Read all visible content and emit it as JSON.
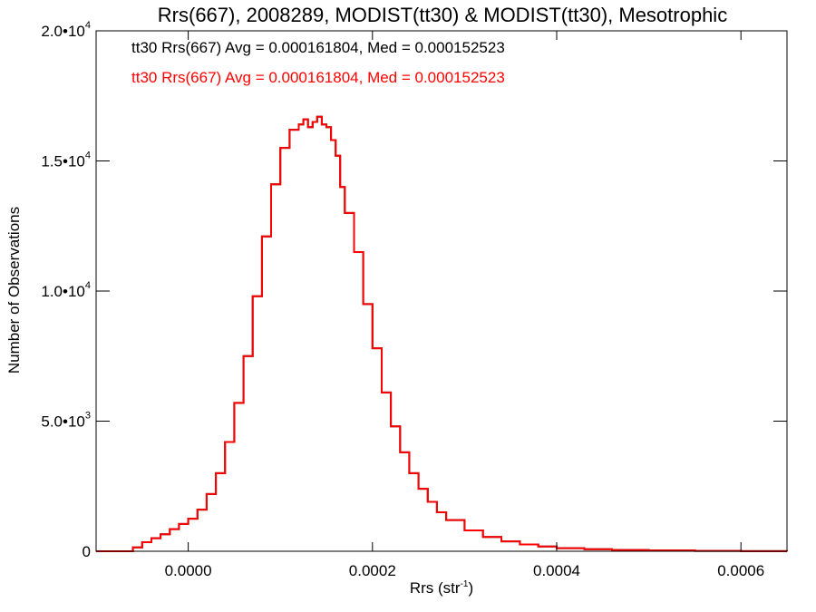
{
  "chart_data": {
    "type": "line",
    "step": true,
    "title": "Rrs(667), 2008289, MODIST(tt30) & MODIST(tt30), Mesotrophic",
    "xlabel": "Rrs (str",
    "xlabel_sup": "-1",
    "xlabel_end": ")",
    "ylabel": "Number of Observations",
    "xlim": [
      -0.0001,
      0.00065
    ],
    "ylim": [
      0,
      20000
    ],
    "x_ticks": [
      {
        "value": 0.0,
        "label": "0.0000"
      },
      {
        "value": 0.0002,
        "label": "0.0002"
      },
      {
        "value": 0.0004,
        "label": "0.0004"
      },
      {
        "value": 0.0006,
        "label": "0.0006"
      }
    ],
    "y_ticks": [
      {
        "value": 0,
        "mant": "0",
        "exp": ""
      },
      {
        "value": 5000,
        "mant": "5.0•10",
        "exp": "3"
      },
      {
        "value": 10000,
        "mant": "1.0•10",
        "exp": "4"
      },
      {
        "value": 15000,
        "mant": "1.5•10",
        "exp": "4"
      },
      {
        "value": 20000,
        "mant": "2.0•10",
        "exp": "4"
      }
    ],
    "annotations": [
      {
        "text": "tt30 Rrs(667) Avg = 0.000161804, Med = 0.000152523",
        "color": "#000000"
      },
      {
        "text": "tt30 Rrs(667) Avg = 0.000161804, Med = 0.000152523",
        "color": "#ff0000"
      }
    ],
    "series": [
      {
        "color": "#000000",
        "x": [
          -0.0001,
          -7e-05,
          -6e-05,
          -5e-05,
          -4e-05,
          -3e-05,
          -2e-05,
          -1e-05,
          0.0,
          1e-05,
          2e-05,
          3e-05,
          4e-05,
          5e-05,
          6e-05,
          7e-05,
          8e-05,
          9e-05,
          0.0001,
          0.00011,
          0.00012,
          0.000125,
          0.00013,
          0.000135,
          0.00014,
          0.000145,
          0.00015,
          0.000155,
          0.00016,
          0.000165,
          0.00017,
          0.00018,
          0.00019,
          0.0002,
          0.00021,
          0.00022,
          0.00023,
          0.00024,
          0.00025,
          0.00026,
          0.00027,
          0.00028,
          0.0003,
          0.00032,
          0.00034,
          0.00036,
          0.00038,
          0.0004,
          0.00043,
          0.00046,
          0.0005,
          0.00055,
          0.0006,
          0.00065
        ],
        "y": [
          0,
          0,
          150,
          350,
          500,
          650,
          850,
          1050,
          1250,
          1600,
          2200,
          3000,
          4200,
          5700,
          7500,
          9800,
          12100,
          14100,
          15500,
          16200,
          16400,
          16600,
          16300,
          16500,
          16700,
          16400,
          16300,
          15800,
          15200,
          14000,
          13000,
          11500,
          9500,
          7800,
          6100,
          4800,
          3800,
          3000,
          2400,
          1900,
          1500,
          1200,
          800,
          550,
          380,
          260,
          180,
          120,
          80,
          50,
          30,
          15,
          5,
          0
        ]
      },
      {
        "color": "#ff0000",
        "x": [
          -0.0001,
          -7e-05,
          -6e-05,
          -5e-05,
          -4e-05,
          -3e-05,
          -2e-05,
          -1e-05,
          0.0,
          1e-05,
          2e-05,
          3e-05,
          4e-05,
          5e-05,
          6e-05,
          7e-05,
          8e-05,
          9e-05,
          0.0001,
          0.00011,
          0.00012,
          0.000125,
          0.00013,
          0.000135,
          0.00014,
          0.000145,
          0.00015,
          0.000155,
          0.00016,
          0.000165,
          0.00017,
          0.00018,
          0.00019,
          0.0002,
          0.00021,
          0.00022,
          0.00023,
          0.00024,
          0.00025,
          0.00026,
          0.00027,
          0.00028,
          0.0003,
          0.00032,
          0.00034,
          0.00036,
          0.00038,
          0.0004,
          0.00043,
          0.00046,
          0.0005,
          0.00055,
          0.0006,
          0.00065
        ],
        "y": [
          0,
          0,
          150,
          350,
          500,
          650,
          850,
          1050,
          1250,
          1600,
          2200,
          3000,
          4200,
          5700,
          7500,
          9800,
          12100,
          14100,
          15500,
          16200,
          16400,
          16600,
          16300,
          16500,
          16700,
          16400,
          16300,
          15800,
          15200,
          14000,
          13000,
          11500,
          9500,
          7800,
          6100,
          4800,
          3800,
          3000,
          2400,
          1900,
          1500,
          1200,
          800,
          550,
          380,
          260,
          180,
          120,
          80,
          50,
          30,
          15,
          5,
          0
        ]
      }
    ]
  }
}
